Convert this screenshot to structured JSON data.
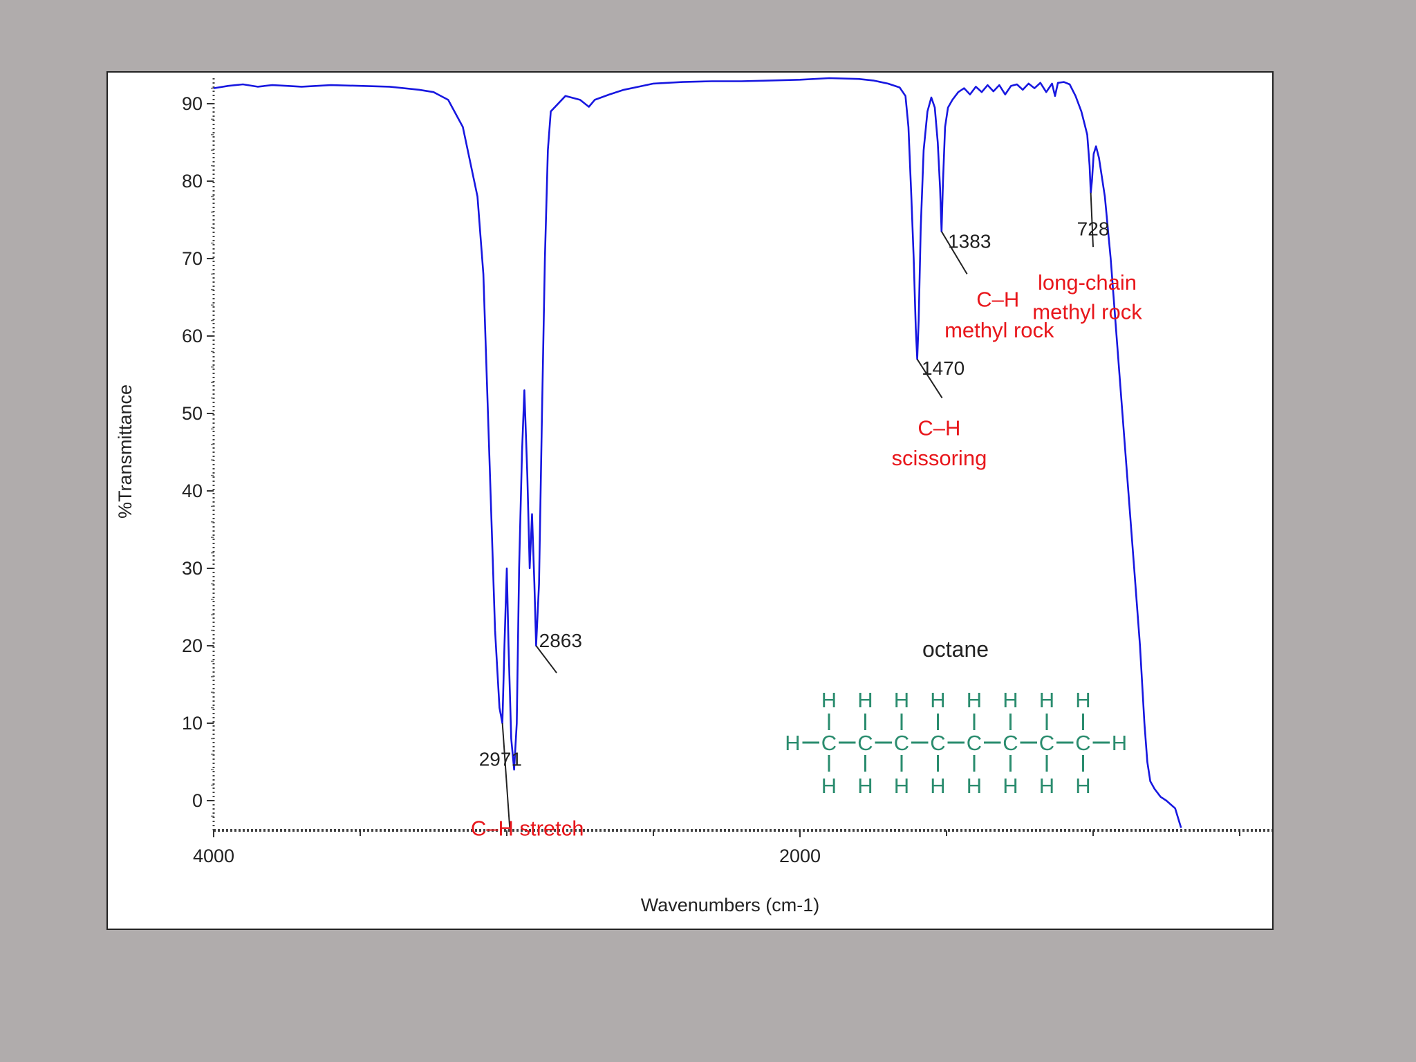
{
  "chart_data": {
    "type": "line",
    "title": "",
    "xlabel": "Wavenumbers (cm-1)",
    "ylabel": "%Transmittance",
    "xlim": [
      4000,
      400
    ],
    "ylim": [
      -4,
      94
    ],
    "x_tick_labels": [
      {
        "value": 4000,
        "label": "4000"
      },
      {
        "value": 2000,
        "label": "2000"
      }
    ],
    "x_minor_ticks": [
      3500,
      3000,
      2500,
      1500,
      1000,
      500
    ],
    "y_ticks": [
      0,
      10,
      20,
      30,
      40,
      50,
      60,
      70,
      80,
      90
    ],
    "series": [
      {
        "color": "#1717e0",
        "points": [
          [
            4000,
            92.0
          ],
          [
            3950,
            92.3
          ],
          [
            3900,
            92.5
          ],
          [
            3850,
            92.2
          ],
          [
            3800,
            92.4
          ],
          [
            3750,
            92.3
          ],
          [
            3700,
            92.2
          ],
          [
            3600,
            92.4
          ],
          [
            3500,
            92.3
          ],
          [
            3400,
            92.2
          ],
          [
            3300,
            91.8
          ],
          [
            3250,
            91.5
          ],
          [
            3200,
            90.5
          ],
          [
            3150,
            87.0
          ],
          [
            3100,
            78.0
          ],
          [
            3080,
            68.0
          ],
          [
            3060,
            45.0
          ],
          [
            3040,
            22.0
          ],
          [
            3025,
            12.0
          ],
          [
            3015,
            10.0
          ],
          [
            3008,
            20.0
          ],
          [
            3000,
            30.0
          ],
          [
            2994,
            20.0
          ],
          [
            2985,
            8.0
          ],
          [
            2975,
            4.0
          ],
          [
            2966,
            10.0
          ],
          [
            2958,
            30.0
          ],
          [
            2948,
            45.0
          ],
          [
            2940,
            53.0
          ],
          [
            2930,
            42.0
          ],
          [
            2922,
            30.0
          ],
          [
            2914,
            37.0
          ],
          [
            2906,
            28.0
          ],
          [
            2900,
            20.0
          ],
          [
            2890,
            28.0
          ],
          [
            2880,
            50.0
          ],
          [
            2870,
            70.0
          ],
          [
            2860,
            84.0
          ],
          [
            2850,
            89.0
          ],
          [
            2800,
            91.0
          ],
          [
            2750,
            90.5
          ],
          [
            2720,
            89.6
          ],
          [
            2700,
            90.5
          ],
          [
            2650,
            91.2
          ],
          [
            2600,
            91.8
          ],
          [
            2550,
            92.2
          ],
          [
            2500,
            92.6
          ],
          [
            2400,
            92.8
          ],
          [
            2300,
            92.9
          ],
          [
            2200,
            92.9
          ],
          [
            2100,
            93.0
          ],
          [
            2000,
            93.1
          ],
          [
            1900,
            93.3
          ],
          [
            1800,
            93.2
          ],
          [
            1750,
            93.0
          ],
          [
            1700,
            92.6
          ],
          [
            1660,
            92.1
          ],
          [
            1640,
            91.0
          ],
          [
            1630,
            87.0
          ],
          [
            1620,
            78.0
          ],
          [
            1612,
            70.0
          ],
          [
            1605,
            61.0
          ],
          [
            1600,
            57.0
          ],
          [
            1595,
            62.0
          ],
          [
            1588,
            74.0
          ],
          [
            1578,
            84.0
          ],
          [
            1565,
            89.0
          ],
          [
            1552,
            90.8
          ],
          [
            1540,
            89.5
          ],
          [
            1530,
            85.0
          ],
          [
            1522,
            79.0
          ],
          [
            1517,
            73.5
          ],
          [
            1512,
            80.0
          ],
          [
            1505,
            87.0
          ],
          [
            1495,
            89.5
          ],
          [
            1480,
            90.5
          ],
          [
            1460,
            91.5
          ],
          [
            1440,
            92.0
          ],
          [
            1420,
            91.2
          ],
          [
            1400,
            92.2
          ],
          [
            1380,
            91.5
          ],
          [
            1360,
            92.4
          ],
          [
            1340,
            91.6
          ],
          [
            1320,
            92.4
          ],
          [
            1300,
            91.2
          ],
          [
            1280,
            92.3
          ],
          [
            1260,
            92.5
          ],
          [
            1240,
            91.8
          ],
          [
            1220,
            92.6
          ],
          [
            1200,
            92.0
          ],
          [
            1180,
            92.7
          ],
          [
            1160,
            91.5
          ],
          [
            1140,
            92.6
          ],
          [
            1130,
            91.0
          ],
          [
            1120,
            92.7
          ],
          [
            1100,
            92.8
          ],
          [
            1080,
            92.5
          ],
          [
            1060,
            91.0
          ],
          [
            1040,
            89.0
          ],
          [
            1030,
            87.5
          ],
          [
            1020,
            86.0
          ],
          [
            1012,
            82.0
          ],
          [
            1008,
            78.5
          ],
          [
            1004,
            80.0
          ],
          [
            998,
            83.5
          ],
          [
            990,
            84.5
          ],
          [
            980,
            83.0
          ],
          [
            960,
            78.0
          ],
          [
            940,
            70.0
          ],
          [
            920,
            60.0
          ],
          [
            900,
            50.0
          ],
          [
            880,
            40.0
          ],
          [
            860,
            30.0
          ],
          [
            840,
            20.0
          ],
          [
            825,
            10.0
          ],
          [
            815,
            5.0
          ],
          [
            805,
            2.5
          ],
          [
            790,
            1.5
          ],
          [
            770,
            0.5
          ],
          [
            750,
            0.0
          ],
          [
            720,
            -1.0
          ],
          [
            700,
            -3.5
          ]
        ]
      }
    ],
    "annotations": [
      {
        "kind": "peak",
        "text": "2971",
        "x": 3015,
        "y": 10.0,
        "lx": 2990,
        "ly": -3.5,
        "tx": 3095,
        "ty": 4.5
      },
      {
        "kind": "peak",
        "text": "2863",
        "x": 2900,
        "y": 20.0,
        "lx": 2830,
        "ly": 16.5,
        "tx": 2890,
        "ty": 19.8
      },
      {
        "kind": "peak",
        "text": "1470",
        "x": 1600,
        "y": 57.0,
        "lx": 1515,
        "ly": 52.0,
        "tx": 1585,
        "ty": 55.0
      },
      {
        "kind": "peak",
        "text": "1383",
        "x": 1517,
        "y": 73.5,
        "lx": 1430,
        "ly": 68.0,
        "tx": 1495,
        "ty": 71.4
      },
      {
        "kind": "peak",
        "text": "728",
        "x": 1008,
        "y": 78.5,
        "lx": 1000,
        "ly": 71.5,
        "tx": 1055,
        "ty": 73.0
      },
      {
        "kind": "label",
        "text": "C–H stretch",
        "x": 2930,
        "y": -4.5
      },
      {
        "kind": "label",
        "text": "C–H",
        "x": 1325,
        "y": 63.8
      },
      {
        "kind": "label",
        "text": "methyl rock",
        "x": 1320,
        "y": 59.8
      },
      {
        "kind": "label",
        "text": "long-chain",
        "x": 1020,
        "y": 66.0
      },
      {
        "kind": "label",
        "text": "methyl rock",
        "x": 1020,
        "y": 62.2
      },
      {
        "kind": "label",
        "text": "C–H",
        "x": 1525,
        "y": 47.2
      },
      {
        "kind": "label",
        "text": "scissoring",
        "x": 1525,
        "y": 43.3
      }
    ],
    "molecule": {
      "name": "octane",
      "carbon": "C",
      "hydrogen": "H",
      "carbons": 8
    }
  }
}
